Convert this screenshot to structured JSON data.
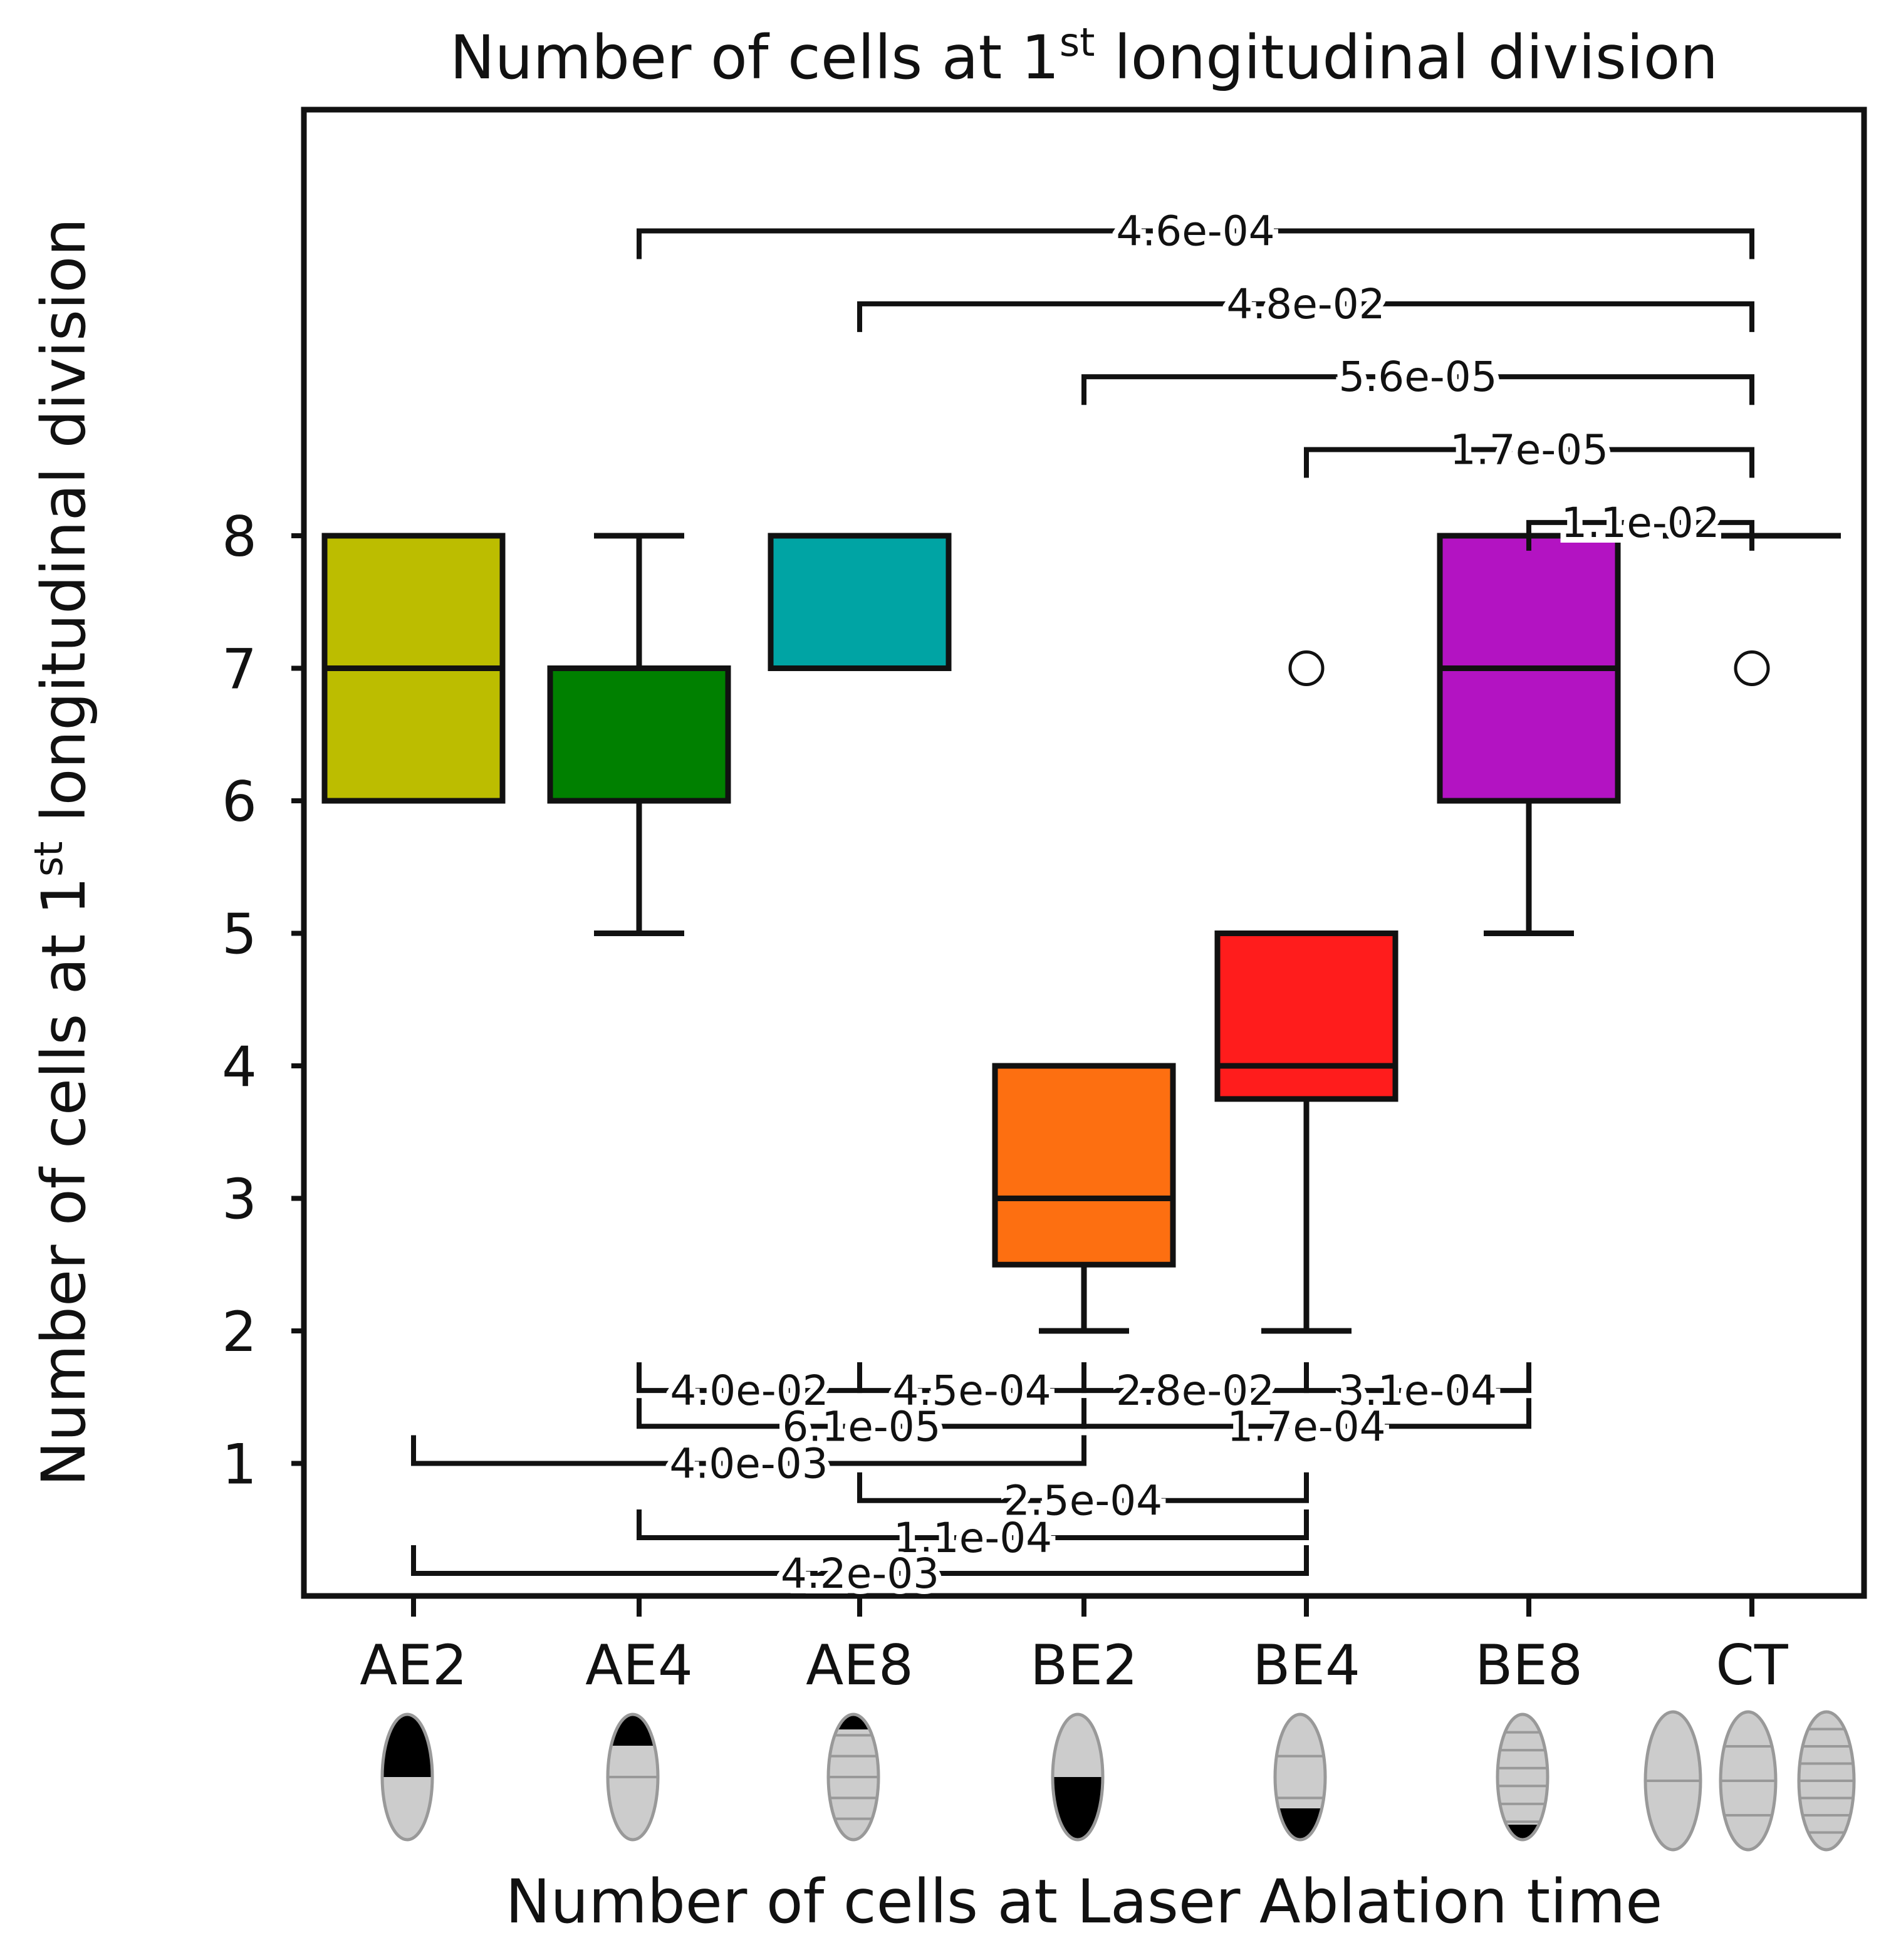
{
  "chart_data": {
    "type": "box",
    "title": {
      "main": "Number of cells at 1",
      "sup": "st",
      "rest": " longitudinal division"
    },
    "ylabel": {
      "main": "Number of cells at 1",
      "sup": "st",
      "rest": " longitudinal division"
    },
    "xlabel": "Number of cells at Laser Ablation time",
    "y_ticks": [
      1,
      2,
      3,
      4,
      5,
      6,
      7,
      8
    ],
    "ylim": [
      0,
      11.05
    ],
    "categories": [
      "AE2",
      "AE4",
      "AE8",
      "BE2",
      "BE4",
      "BE8",
      "CT"
    ],
    "boxes": [
      {
        "name": "AE2",
        "color": "#bcbd00",
        "whisker_low": 6,
        "q1": 6,
        "median": 7,
        "q3": 8,
        "whisker_high": 8,
        "outliers": []
      },
      {
        "name": "AE4",
        "color": "#008000",
        "whisker_low": 5,
        "q1": 6,
        "median": 7,
        "q3": 7,
        "whisker_high": 8,
        "outliers": []
      },
      {
        "name": "AE8",
        "color": "#00a4a4",
        "whisker_low": 7,
        "q1": 7,
        "median": 8,
        "q3": 8,
        "whisker_high": 8,
        "outliers": []
      },
      {
        "name": "BE2",
        "color": "#fd6f11",
        "whisker_low": 2,
        "q1": 2.5,
        "median": 3,
        "q3": 4,
        "whisker_high": 4,
        "outliers": []
      },
      {
        "name": "BE4",
        "color": "#ff1c1c",
        "whisker_low": 2,
        "q1": 3.75,
        "median": 4,
        "q3": 5,
        "whisker_high": 5,
        "outliers": [
          7
        ]
      },
      {
        "name": "BE8",
        "color": "#b313c2",
        "whisker_low": 5,
        "q1": 6,
        "median": 7,
        "q3": 8,
        "whisker_high": 8,
        "outliers": []
      },
      {
        "name": "CT",
        "color": "#000000",
        "whisker_low": 8,
        "q1": 8,
        "median": 8,
        "q3": 8,
        "whisker_high": 8,
        "outliers": [
          7
        ]
      }
    ],
    "annotations_top": [
      {
        "from": "AE4",
        "to": "CT",
        "p": "4.6e-04",
        "y": 10.3
      },
      {
        "from": "AE8",
        "to": "CT",
        "p": "4.8e-02",
        "y": 9.75
      },
      {
        "from": "BE2",
        "to": "CT",
        "p": "5.6e-05",
        "y": 9.2
      },
      {
        "from": "BE4",
        "to": "CT",
        "p": "1.7e-05",
        "y": 8.65
      },
      {
        "from": "BE8",
        "to": "CT",
        "p": "1.1e-02",
        "y": 8.1
      }
    ],
    "annotations_bottom": [
      {
        "from": "AE4",
        "to": "AE8",
        "p": "4.0e-02",
        "y": 1.55
      },
      {
        "from": "AE8",
        "to": "BE2",
        "p": "4.5e-04",
        "y": 1.55
      },
      {
        "from": "BE2",
        "to": "BE4",
        "p": "2.8e-02",
        "y": 1.55
      },
      {
        "from": "BE4",
        "to": "BE8",
        "p": "3.1e-04",
        "y": 1.55
      },
      {
        "from": "AE4",
        "to": "BE2",
        "p": "6.1e-05",
        "y": 1.28
      },
      {
        "from": "BE2",
        "to": "BE8",
        "p": "1.7e-04",
        "y": 1.28
      },
      {
        "from": "AE2",
        "to": "BE2",
        "p": "4.0e-03",
        "y": 1.0
      },
      {
        "from": "AE8",
        "to": "BE4",
        "p": "2.5e-04",
        "y": 0.72
      },
      {
        "from": "AE4",
        "to": "BE4",
        "p": "1.1e-04",
        "y": 0.44
      },
      {
        "from": "AE2",
        "to": "BE4",
        "p": "4.2e-03",
        "y": 0.17
      }
    ],
    "embryo_icons": [
      {
        "category": "AE2",
        "stripes": 0,
        "dark": "top",
        "dark_fraction": 0.5
      },
      {
        "category": "AE4",
        "stripes": 1,
        "dark": "top",
        "dark_fraction": 0.25
      },
      {
        "category": "AE8",
        "stripes": 5,
        "dark": "top",
        "dark_fraction": 0.12
      },
      {
        "category": "BE2",
        "stripes": 0,
        "dark": "bottom",
        "dark_fraction": 0.5
      },
      {
        "category": "BE4",
        "stripes": 2,
        "dark": "bottom",
        "dark_fraction": 0.25
      },
      {
        "category": "BE8",
        "stripes": 6,
        "dark": "bottom",
        "dark_fraction": 0.12
      },
      {
        "category": "CT",
        "group": [
          {
            "stripes": 1,
            "dark": "none"
          },
          {
            "stripes": 3,
            "dark": "none"
          },
          {
            "stripes": 7,
            "dark": "none"
          }
        ]
      }
    ]
  }
}
